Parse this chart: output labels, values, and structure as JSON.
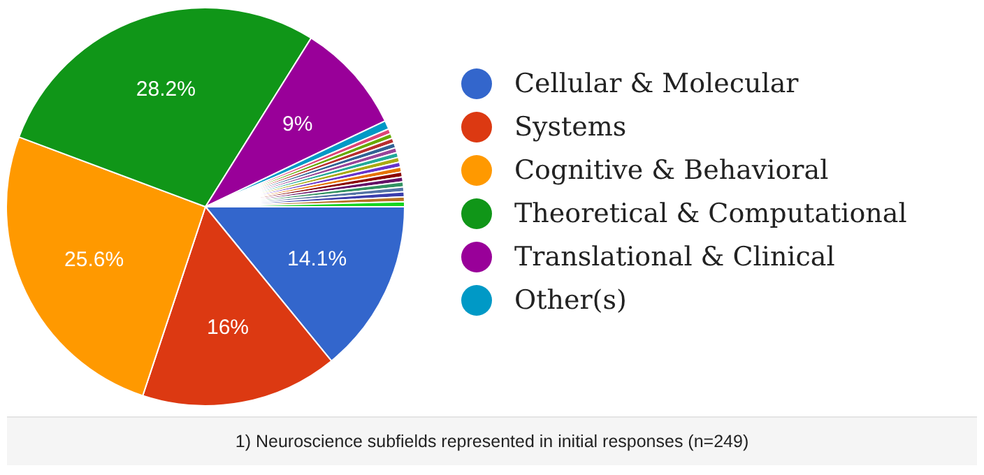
{
  "chart_data": {
    "type": "pie",
    "legend": "right",
    "categories": [
      "Cellular & Molecular",
      "Systems",
      "Cognitive & Behavioral",
      "Theoretical & Computational",
      "Translational & Clinical",
      "Other(s)",
      null,
      null,
      null,
      null,
      null,
      null,
      null,
      null,
      null,
      null,
      null,
      null,
      null,
      null,
      null,
      null
    ],
    "values": [
      14.1,
      16,
      25.6,
      28.2,
      9,
      0.7,
      0.4,
      0.4,
      0.4,
      0.4,
      0.4,
      0.4,
      0.4,
      0.4,
      0.4,
      0.4,
      0.4,
      0.4,
      0.4,
      0.4,
      0.4,
      0.4
    ],
    "value_labels": [
      "14.1%",
      "16%",
      "25.6%",
      "28.2%",
      "9%",
      null,
      null,
      null,
      null,
      null,
      null,
      null,
      null,
      null,
      null,
      null,
      null,
      null,
      null,
      null,
      null,
      null
    ],
    "colors": [
      "#3366cc",
      "#dc3912",
      "#ff9900",
      "#109618",
      "#990099",
      "#0099c6",
      "#dd4477",
      "#66aa00",
      "#b82e2e",
      "#316395",
      "#994499",
      "#22aa99",
      "#aaaa11",
      "#6633cc",
      "#e67300",
      "#8b0707",
      "#651067",
      "#329262",
      "#5574a6",
      "#3b3eac",
      "#b77322",
      "#16d620"
    ],
    "annotations": [
      "1) Neuroscience subfields represented in initial responses (n=249)"
    ]
  }
}
